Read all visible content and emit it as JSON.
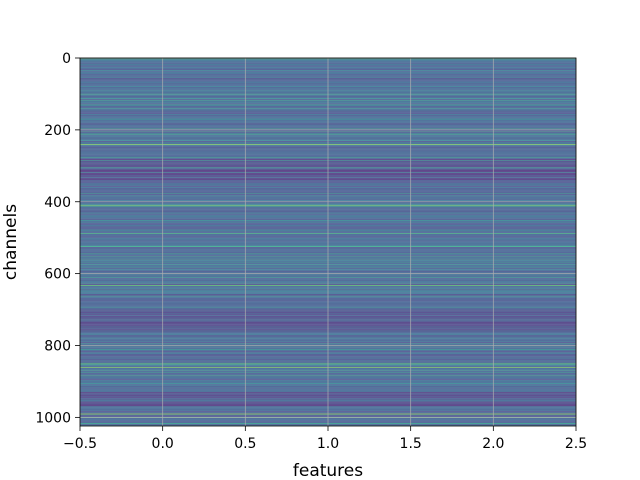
{
  "chart_data": {
    "type": "heatmap",
    "title": "",
    "xlabel": "features",
    "ylabel": "channels",
    "xlim": [
      -0.5,
      2.5
    ],
    "ylim": [
      1024,
      0
    ],
    "rows": 1024,
    "columns": 3,
    "colormap": "viridis",
    "value_range": [
      0,
      1
    ],
    "y_inverted": true,
    "grid": true,
    "x_ticks": [
      -0.5,
      0.0,
      0.5,
      1.0,
      1.5,
      2.0,
      2.5
    ],
    "x_tick_labels": [
      "−0.5",
      "0.0",
      "0.5",
      "1.0",
      "1.5",
      "2.0",
      "2.5"
    ],
    "y_ticks": [
      0,
      200,
      400,
      600,
      800,
      1000
    ],
    "y_tick_labels": [
      "0",
      "200",
      "400",
      "600",
      "800",
      "1000"
    ],
    "highlight_rows": [
      {
        "row": 0,
        "value": 0.95
      },
      {
        "row": 100,
        "value": 0.75
      },
      {
        "row": 118,
        "value": 0.72
      },
      {
        "row": 130,
        "value": 0.7
      },
      {
        "row": 240,
        "value": 0.92
      },
      {
        "row": 410,
        "value": 0.88
      },
      {
        "row": 488,
        "value": 0.8
      },
      {
        "row": 523,
        "value": 0.72
      },
      {
        "row": 600,
        "value": 0.68
      },
      {
        "row": 632,
        "value": 0.85
      },
      {
        "row": 662,
        "value": 0.7
      },
      {
        "row": 810,
        "value": 0.65
      },
      {
        "row": 850,
        "value": 0.82
      },
      {
        "row": 860,
        "value": 0.9
      },
      {
        "row": 905,
        "value": 0.62
      },
      {
        "row": 990,
        "value": 0.95
      },
      {
        "row": 1000,
        "value": 0.8
      }
    ],
    "dark_bands": [
      {
        "start": 280,
        "end": 340,
        "value": 0.12
      },
      {
        "start": 700,
        "end": 760,
        "value": 0.14
      },
      {
        "start": 930,
        "end": 970,
        "value": 0.12
      }
    ]
  }
}
